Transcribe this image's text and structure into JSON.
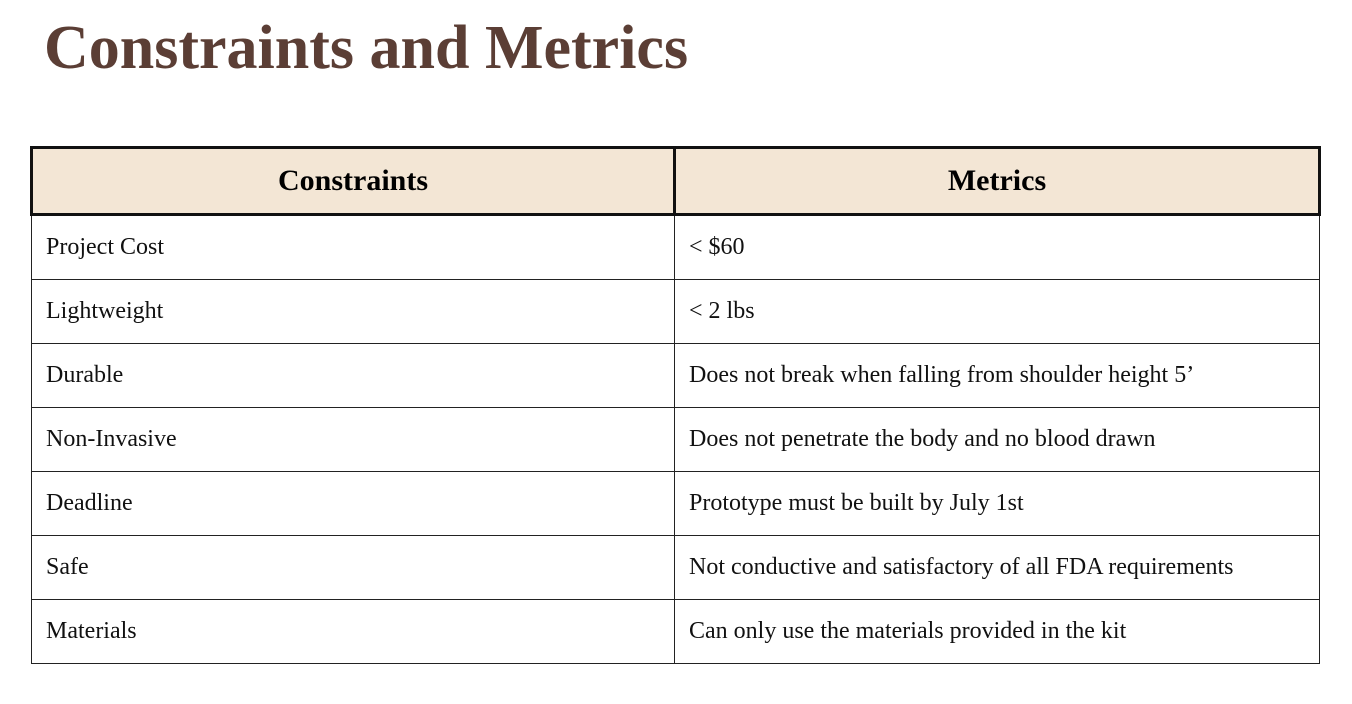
{
  "title": "Constraints and Metrics",
  "table": {
    "headers": [
      "Constraints",
      "Metrics"
    ],
    "rows": [
      [
        "Project  Cost",
        "< $60"
      ],
      [
        "Lightweight",
        "< 2 lbs"
      ],
      [
        "Durable",
        "Does not break when falling from shoulder height 5’"
      ],
      [
        "Non-Invasive",
        "Does not penetrate the body and no blood drawn"
      ],
      [
        "Deadline",
        "Prototype must be built by July 1st"
      ],
      [
        "Safe",
        "Not conductive and satisfactory of all FDA requirements"
      ],
      [
        "Materials",
        "Can only use the materials provided in the kit"
      ]
    ]
  },
  "colors": {
    "title": "#5b3e35",
    "header_bg": "#f3e6d5",
    "border": "#111111"
  }
}
